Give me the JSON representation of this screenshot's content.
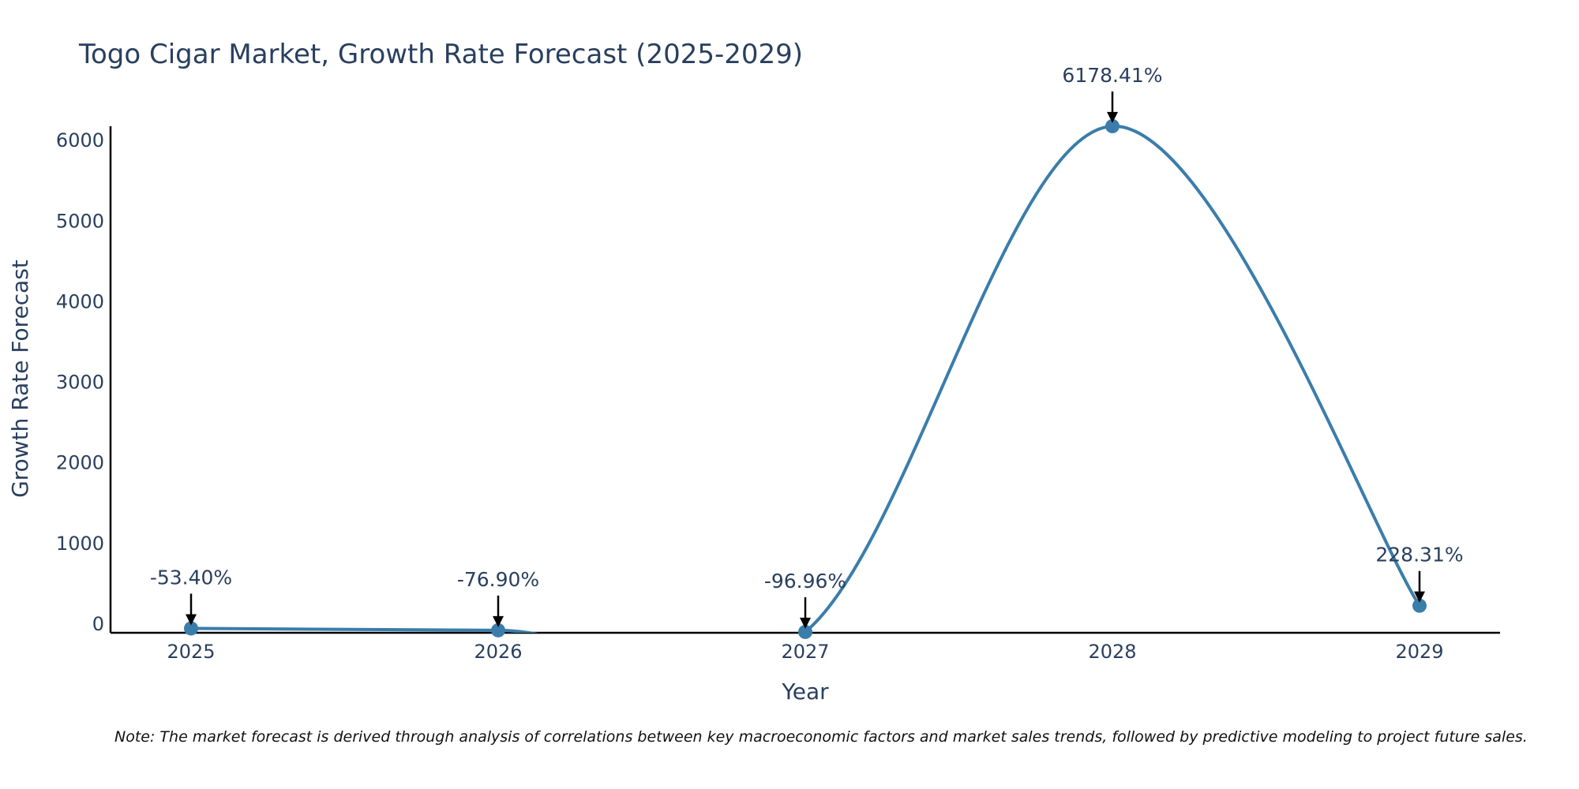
{
  "colors": {
    "line": "#3a7dab",
    "marker": "#3a7dab",
    "axis": "#000000",
    "text": "#2a3f5f",
    "arrow": "#000000",
    "background": "#ffffff"
  },
  "chart_data": {
    "type": "line",
    "title": "Togo Cigar Market, Growth Rate Forecast (2025-2029)",
    "xlabel": "Year",
    "ylabel": "Growth Rate Forecast",
    "categories": [
      "2025",
      "2026",
      "2027",
      "2028",
      "2029"
    ],
    "series": [
      {
        "name": "Growth Rate Forecast",
        "values": [
          -53.4,
          -76.9,
          -96.96,
          6178.41,
          228.31
        ]
      }
    ],
    "data_labels": [
      "-53.40%",
      "-76.90%",
      "-96.96%",
      "6178.41%",
      "228.31%"
    ],
    "yticks": [
      0,
      1000,
      2000,
      3000,
      4000,
      5000,
      6000
    ],
    "ytick_labels": [
      "0",
      "1000",
      "2000",
      "3000",
      "4000",
      "5000",
      "6000"
    ],
    "ylim": [
      -120,
      6180
    ],
    "grid": false,
    "legend": "none",
    "line_shape": "spline"
  },
  "note": "Note: The market forecast is derived through analysis of correlations between key macroeconomic factors and market sales trends, followed by predictive modeling to project future sales."
}
